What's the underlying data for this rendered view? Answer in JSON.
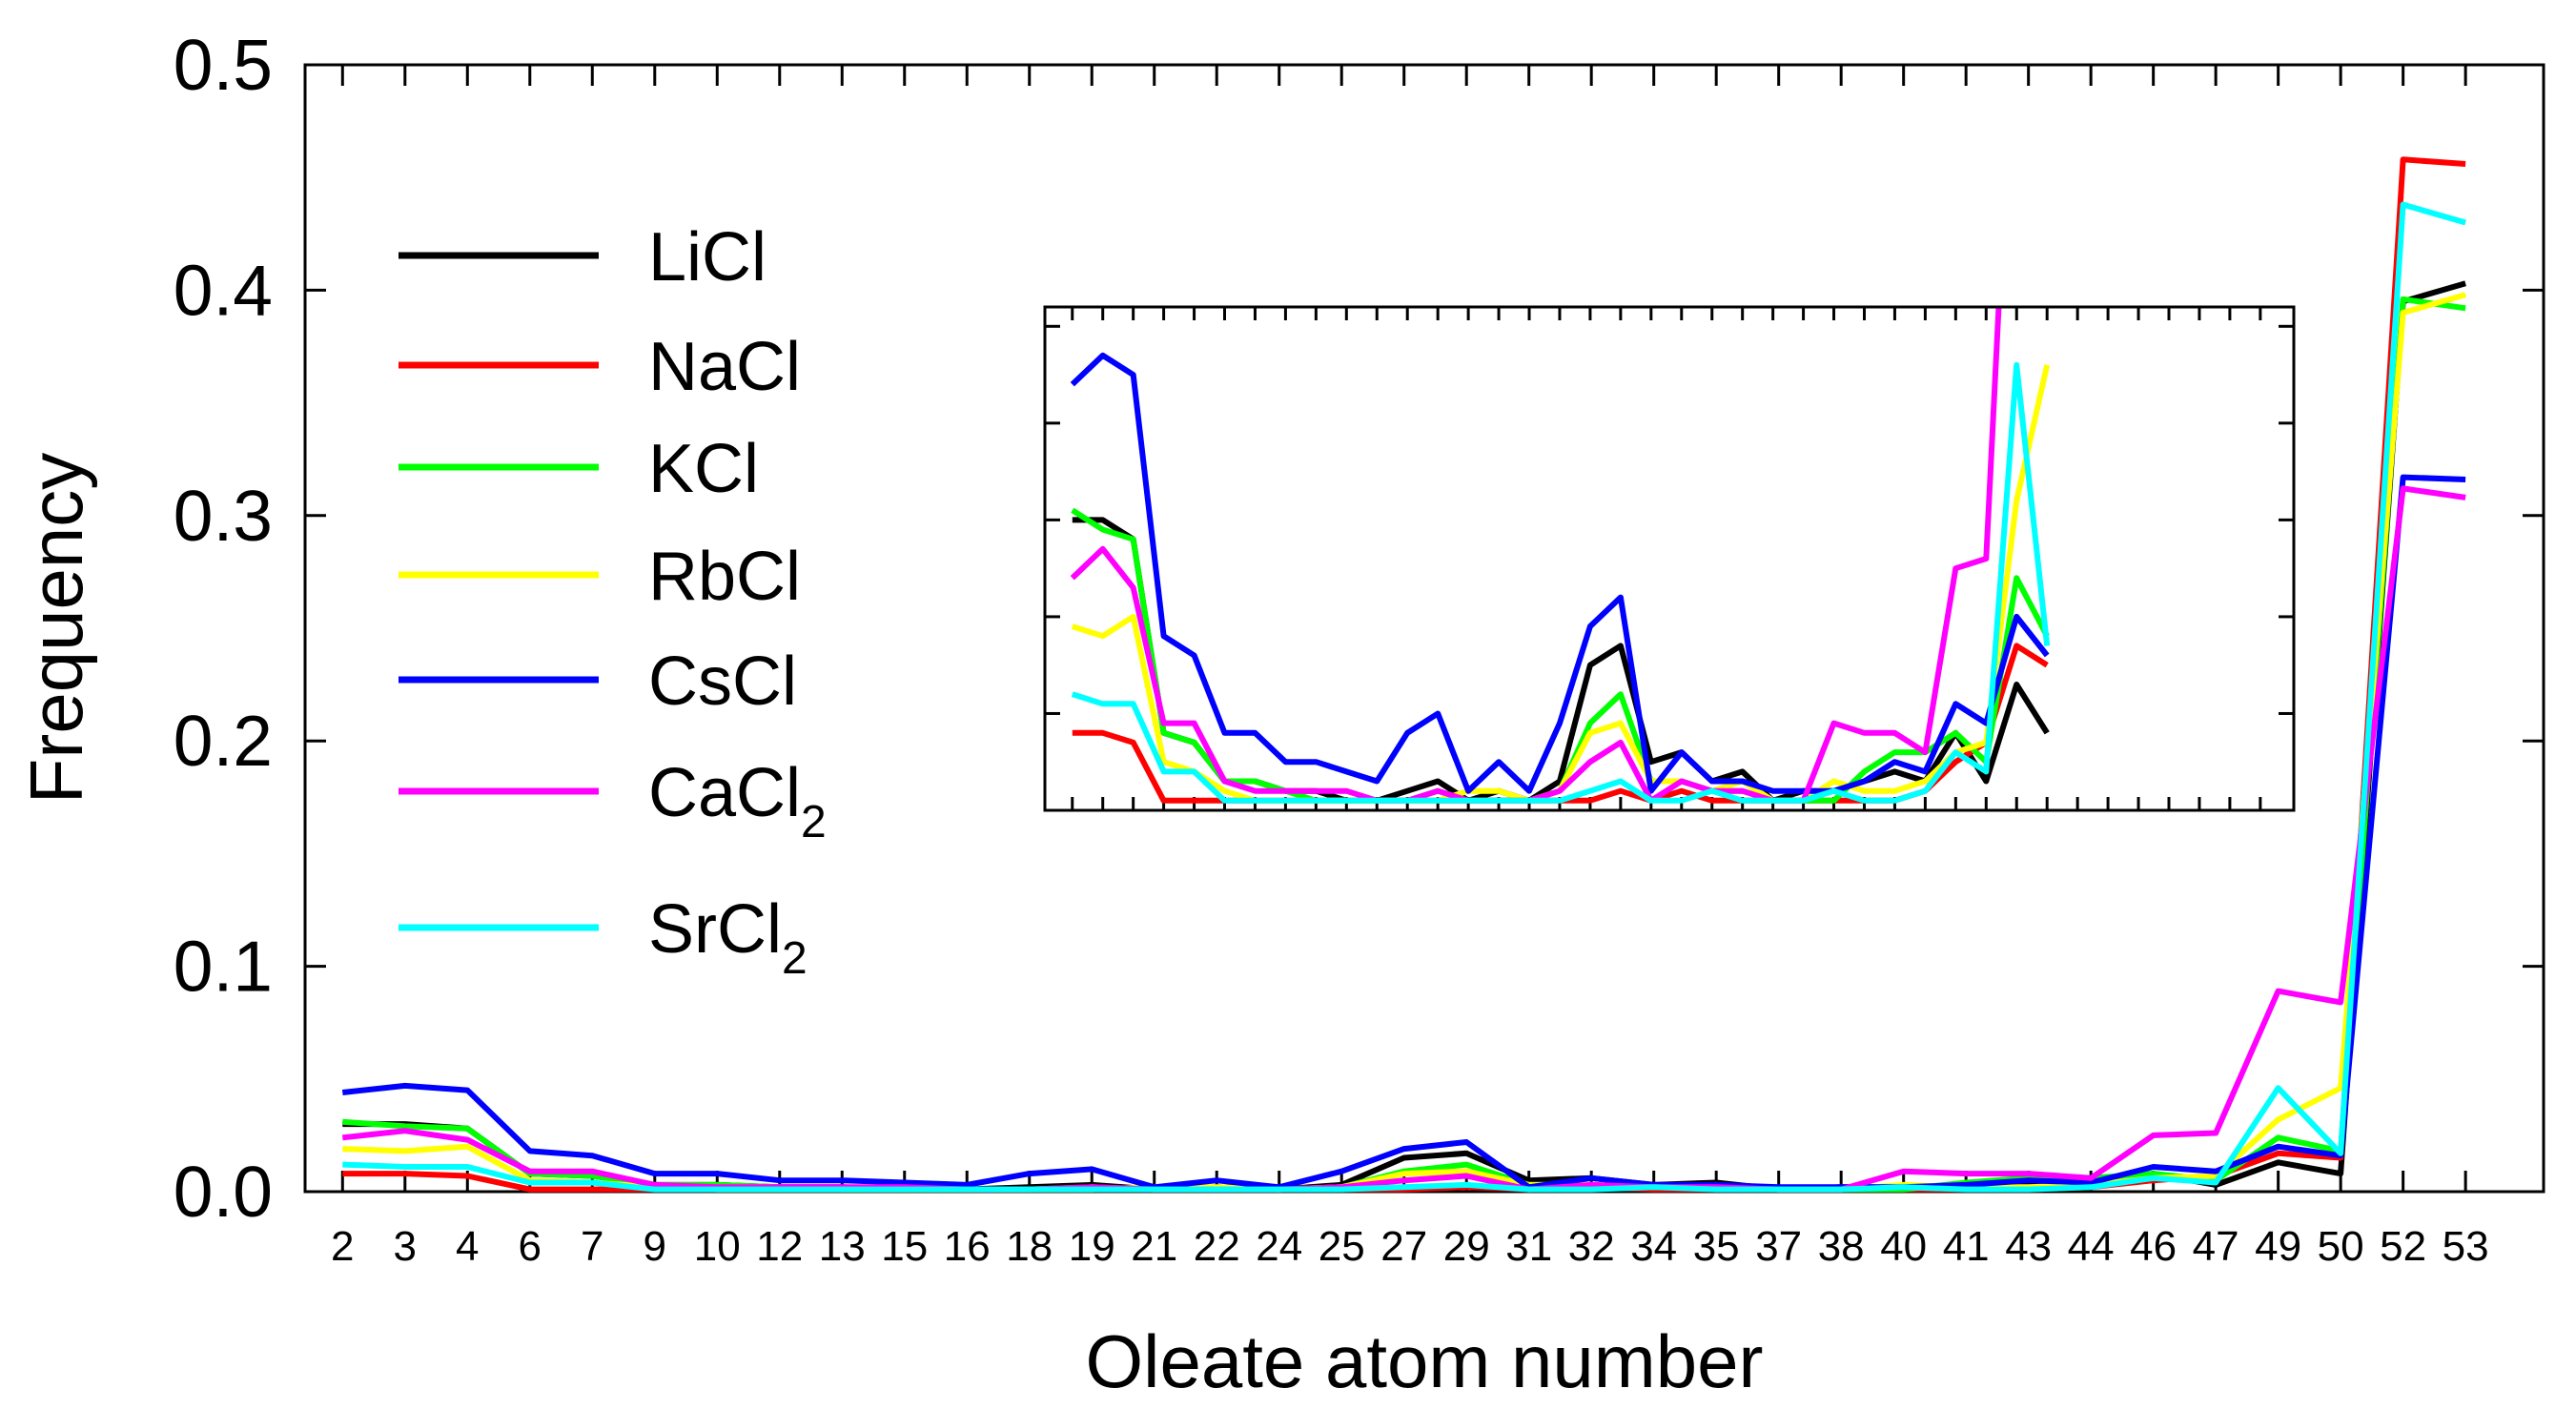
{
  "chart_data": {
    "type": "line",
    "title": "",
    "xlabel": "Oleate atom number",
    "ylabel": "Frequency",
    "ylim": [
      0,
      0.5
    ],
    "yticks": [
      "0.0",
      "0.1",
      "0.2",
      "0.3",
      "0.4",
      "0.5"
    ],
    "ytick_values": [
      0,
      0.1,
      0.2,
      0.3,
      0.4,
      0.5
    ],
    "categories": [
      "2",
      "3",
      "4",
      "6",
      "7",
      "9",
      "10",
      "12",
      "13",
      "15",
      "16",
      "18",
      "19",
      "21",
      "22",
      "24",
      "25",
      "27",
      "29",
      "31",
      "32",
      "34",
      "35",
      "37",
      "38",
      "40",
      "41",
      "43",
      "44",
      "46",
      "47",
      "49",
      "50",
      "52",
      "53"
    ],
    "legend": {
      "placement": "top-left"
    },
    "series": [
      {
        "name": "LiCl",
        "base": "LiCl",
        "sub": "",
        "color": "#000000",
        "values": [
          0.03,
          0.03,
          0.028,
          0.008,
          0.007,
          0.003,
          0.003,
          0.002,
          0.002,
          0.001,
          0.001,
          0.002,
          0.003,
          0.001,
          0.002,
          0.001,
          0.003,
          0.015,
          0.017,
          0.005,
          0.006,
          0.003,
          0.004,
          0.001,
          0.002,
          0.002,
          0.003,
          0.004,
          0.003,
          0.008,
          0.003,
          0.013,
          0.008,
          0.395,
          0.403
        ]
      },
      {
        "name": "NaCl",
        "base": "NaCl",
        "sub": "",
        "color": "#ff0000",
        "values": [
          0.008,
          0.008,
          0.007,
          0.001,
          0.001,
          0.001,
          0.001,
          0.001,
          0.001,
          0.001,
          0.001,
          0.001,
          0.001,
          0.001,
          0.001,
          0.001,
          0.001,
          0.001,
          0.002,
          0.001,
          0.002,
          0.001,
          0.001,
          0.001,
          0.001,
          0.001,
          0.001,
          0.001,
          0.002,
          0.005,
          0.007,
          0.017,
          0.015,
          0.458,
          0.456
        ]
      },
      {
        "name": "KCl",
        "base": "KCl",
        "sub": "",
        "color": "#00ff00",
        "values": [
          0.031,
          0.029,
          0.028,
          0.008,
          0.007,
          0.003,
          0.003,
          0.002,
          0.001,
          0.001,
          0.001,
          0.001,
          0.002,
          0.001,
          0.001,
          0.001,
          0.002,
          0.009,
          0.012,
          0.003,
          0.003,
          0.002,
          0.002,
          0.001,
          0.001,
          0.001,
          0.004,
          0.006,
          0.006,
          0.008,
          0.005,
          0.024,
          0.018,
          0.396,
          0.392
        ]
      },
      {
        "name": "RbCl",
        "base": "RbCl",
        "sub": "",
        "color": "#ffff00",
        "values": [
          0.019,
          0.018,
          0.02,
          0.005,
          0.004,
          0.002,
          0.001,
          0.001,
          0.001,
          0.001,
          0.001,
          0.001,
          0.001,
          0.002,
          0.002,
          0.001,
          0.002,
          0.008,
          0.009,
          0.003,
          0.003,
          0.002,
          0.003,
          0.001,
          0.001,
          0.003,
          0.002,
          0.002,
          0.003,
          0.006,
          0.007,
          0.032,
          0.046,
          0.39,
          0.398
        ]
      },
      {
        "name": "CsCl",
        "base": "CsCl",
        "sub": "",
        "color": "#0000ff",
        "values": [
          0.044,
          0.047,
          0.045,
          0.018,
          0.016,
          0.008,
          0.008,
          0.005,
          0.005,
          0.004,
          0.003,
          0.008,
          0.01,
          0.002,
          0.005,
          0.002,
          0.009,
          0.019,
          0.022,
          0.002,
          0.006,
          0.003,
          0.003,
          0.002,
          0.002,
          0.002,
          0.003,
          0.005,
          0.004,
          0.011,
          0.009,
          0.02,
          0.016,
          0.317,
          0.316
        ]
      },
      {
        "name": "CaCl2",
        "base": "CaCl",
        "sub": "2",
        "color": "#ff00ff",
        "values": [
          0.024,
          0.027,
          0.023,
          0.009,
          0.009,
          0.003,
          0.002,
          0.002,
          0.002,
          0.002,
          0.001,
          0.001,
          0.002,
          0.001,
          0.001,
          0.001,
          0.002,
          0.005,
          0.007,
          0.001,
          0.003,
          0.002,
          0.002,
          0.001,
          0.001,
          0.009,
          0.008,
          0.008,
          0.006,
          0.025,
          0.026,
          0.089,
          0.084,
          0.312,
          0.308
        ]
      },
      {
        "name": "SrCl2",
        "base": "SrCl",
        "sub": "2",
        "color": "#00ffff",
        "values": [
          0.012,
          0.011,
          0.011,
          0.004,
          0.004,
          0.001,
          0.001,
          0.001,
          0.001,
          0.001,
          0.001,
          0.001,
          0.001,
          0.001,
          0.001,
          0.001,
          0.001,
          0.002,
          0.003,
          0.001,
          0.001,
          0.002,
          0.001,
          0.001,
          0.001,
          0.002,
          0.001,
          0.001,
          0.002,
          0.006,
          0.004,
          0.046,
          0.017,
          0.438,
          0.43
        ]
      }
    ],
    "inset": {
      "description": "zoomed view of low-frequency region, points 2 to 50",
      "ylim": [
        0,
        0.052
      ],
      "n_points": 33
    }
  }
}
